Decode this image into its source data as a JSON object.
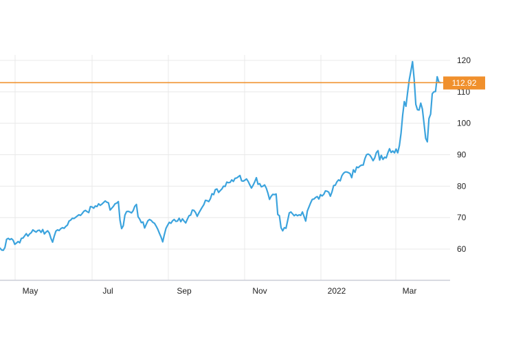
{
  "chart_data": {
    "type": "line",
    "x_ticks": [
      "May",
      "Jul",
      "Sep",
      "Nov",
      "2022",
      "Mar"
    ],
    "y_ticks": [
      60,
      70,
      80,
      90,
      100,
      110,
      120
    ],
    "ylim": [
      50,
      121
    ],
    "grid": true,
    "line_color": "#3ba3dd",
    "reference_color": "#f0902d",
    "reference_line": {
      "value": 112.92,
      "label": "112.92"
    },
    "series": [
      {
        "values": [
          60.3,
          59.7,
          59.6,
          60.5,
          63.1,
          63.4,
          63.0,
          63.3,
          62.8,
          61.5,
          61.9,
          62.4,
          62.0,
          63.4,
          63.5,
          64.2,
          64.9,
          64.1,
          64.8,
          65.2,
          66.1,
          65.7,
          65.4,
          65.9,
          66.0,
          65.3,
          66.2,
          64.8,
          65.4,
          65.8,
          65.1,
          63.4,
          62.2,
          64.1,
          65.7,
          66.1,
          65.9,
          66.5,
          66.8,
          66.6,
          67.2,
          67.6,
          68.9,
          69.2,
          69.8,
          69.7,
          70.1,
          70.5,
          70.9,
          70.7,
          71.3,
          72.0,
          72.3,
          71.9,
          71.6,
          73.5,
          73.4,
          73.0,
          73.7,
          73.5,
          74.4,
          73.9,
          74.3,
          74.8,
          75.3,
          74.9,
          74.7,
          72.4,
          73.0,
          73.6,
          74.4,
          74.6,
          75.1,
          69.2,
          66.5,
          67.4,
          70.8,
          71.9,
          72.0,
          71.8,
          71.5,
          72.2,
          73.6,
          74.2,
          70.3,
          69.5,
          68.4,
          68.6,
          66.7,
          67.9,
          69.0,
          69.4,
          69.1,
          68.5,
          68.2,
          67.3,
          66.3,
          65.0,
          63.8,
          62.3,
          64.6,
          66.6,
          67.6,
          68.5,
          68.2,
          69.0,
          69.4,
          68.8,
          68.9,
          69.8,
          68.7,
          69.6,
          68.9,
          68.3,
          69.5,
          70.6,
          70.8,
          72.4,
          72.3,
          71.6,
          70.4,
          71.5,
          72.4,
          73.3,
          74.1,
          75.5,
          75.4,
          75.1,
          76.0,
          77.6,
          77.3,
          78.9,
          79.1,
          78.0,
          78.6,
          79.1,
          80.0,
          79.9,
          81.3,
          81.1,
          81.2,
          82.0,
          81.5,
          82.5,
          82.6,
          83.0,
          83.4,
          81.7,
          81.6,
          81.9,
          82.3,
          81.5,
          80.4,
          79.4,
          80.3,
          81.4,
          82.7,
          80.6,
          80.8,
          79.8,
          80.0,
          80.4,
          79.4,
          77.8,
          75.8,
          76.8,
          77.4,
          77.3,
          77.5,
          71.0,
          70.6,
          66.8,
          65.8,
          66.8,
          66.6,
          69.0,
          71.5,
          71.8,
          71.2,
          70.6,
          71.0,
          70.6,
          70.9,
          70.7,
          71.8,
          70.4,
          68.9,
          72.1,
          73.4,
          74.7,
          75.8,
          75.9,
          76.4,
          76.7,
          75.9,
          77.3,
          76.9,
          77.4,
          78.5,
          78.4,
          78.1,
          76.8,
          78.2,
          80.2,
          80.3,
          81.4,
          82.0,
          81.7,
          83.3,
          84.1,
          84.5,
          84.5,
          84.3,
          84.0,
          82.7,
          85.2,
          84.4,
          86.1,
          85.9,
          86.4,
          86.7,
          86.7,
          88.7,
          90.0,
          90.2,
          89.9,
          89.1,
          88.1,
          89.0,
          90.7,
          91.3,
          88.3,
          89.8,
          88.5,
          89.2,
          89.0,
          90.6,
          91.9,
          90.7,
          91.2,
          90.6,
          91.8,
          90.6,
          92.9,
          96.8,
          102.6,
          106.9,
          105.4,
          109.8,
          113.8,
          116.6,
          119.6,
          114.0,
          106.0,
          104.3,
          104.2,
          106.4,
          104.5,
          99.9,
          95.2,
          94.1,
          101.5,
          102.9,
          109.4,
          110.0,
          110.1,
          114.8,
          113.1,
          112.9
        ]
      }
    ]
  }
}
